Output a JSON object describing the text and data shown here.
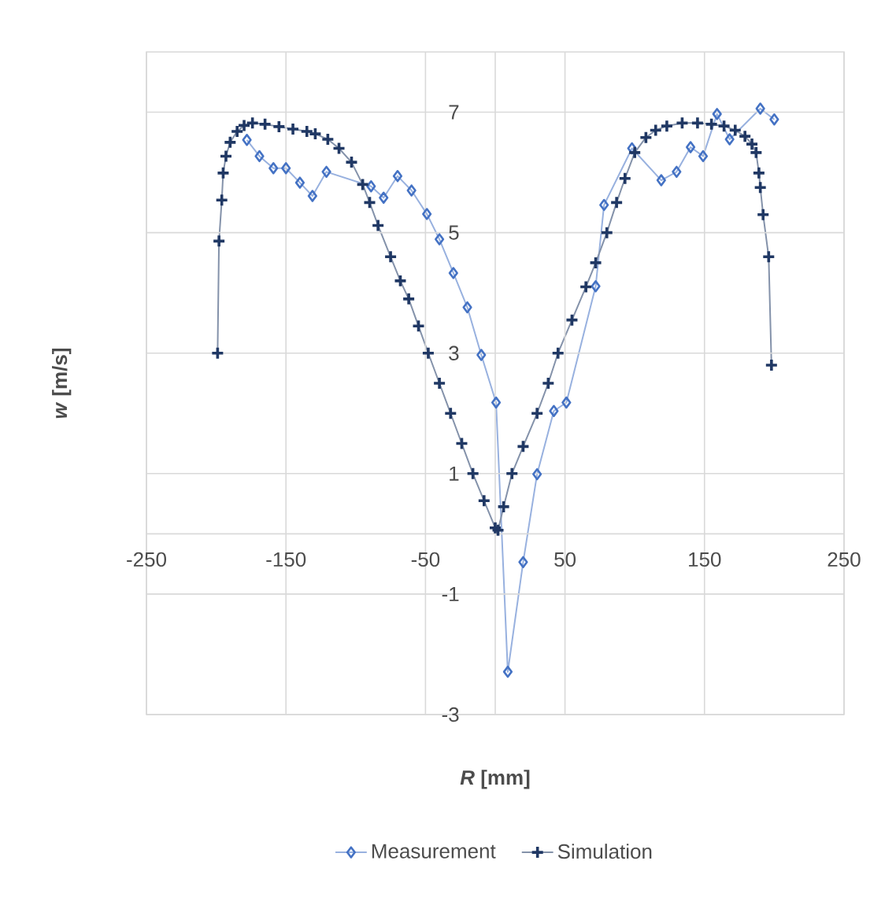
{
  "chart_data": {
    "type": "line",
    "xlabel": "*R* [mm]",
    "ylabel": "*w* [m/s]",
    "xlim": [
      -250,
      250
    ],
    "ylim": [
      -3,
      8
    ],
    "xticks": [
      -250,
      -150,
      -50,
      50,
      150,
      250
    ],
    "yticks": [
      -3,
      -1,
      1,
      3,
      5,
      7
    ],
    "grid": true,
    "legend": "bottom",
    "series": [
      {
        "name": "Measurement",
        "color": "#4472c4",
        "marker": "diamond",
        "x": [
          -178,
          -169,
          -159,
          -150,
          -140,
          -131,
          -121,
          -89,
          -80,
          -70,
          -60,
          -49,
          -40,
          -30,
          -20,
          -10,
          0.6,
          9,
          20,
          30,
          42,
          51,
          72,
          78,
          98,
          119,
          130,
          140,
          149,
          159,
          168,
          190,
          200
        ],
        "values": [
          6.54,
          6.27,
          6.07,
          6.07,
          5.83,
          5.61,
          6.01,
          5.77,
          5.58,
          5.94,
          5.7,
          5.31,
          4.89,
          4.33,
          3.76,
          2.97,
          2.18,
          -2.29,
          -0.47,
          0.99,
          2.04,
          2.18,
          4.11,
          5.46,
          6.4,
          5.87,
          6.01,
          6.42,
          6.27,
          6.97,
          6.55,
          7.06,
          6.88
        ]
      },
      {
        "name": "Simulation",
        "color": "#203864",
        "marker": "cross",
        "x": [
          -199,
          -198,
          -196,
          -195,
          -193,
          -190,
          -185,
          -180,
          -174,
          -165,
          -155,
          -145,
          -135,
          -129,
          -120,
          -112,
          -103,
          -95,
          -90,
          -84,
          -75,
          -68,
          -62,
          -55,
          -48,
          -40,
          -32,
          -24,
          -16,
          -8,
          0,
          2,
          6,
          12,
          20,
          30,
          38,
          45,
          55,
          65,
          72,
          80,
          87,
          93,
          100,
          108,
          115,
          123,
          134,
          145,
          155,
          164,
          172,
          179,
          184,
          187,
          189,
          190,
          192,
          196,
          198
        ],
        "values": [
          3.0,
          4.86,
          5.54,
          5.99,
          6.27,
          6.5,
          6.68,
          6.78,
          6.82,
          6.8,
          6.76,
          6.72,
          6.68,
          6.64,
          6.55,
          6.4,
          6.17,
          5.8,
          5.5,
          5.12,
          4.6,
          4.2,
          3.9,
          3.45,
          3.0,
          2.5,
          2.0,
          1.5,
          1.0,
          0.55,
          0.1,
          0.06,
          0.45,
          1.0,
          1.45,
          2.0,
          2.5,
          3.0,
          3.55,
          4.1,
          4.5,
          5.0,
          5.5,
          5.9,
          6.33,
          6.58,
          6.7,
          6.77,
          6.82,
          6.82,
          6.8,
          6.77,
          6.7,
          6.6,
          6.47,
          6.33,
          5.99,
          5.75,
          5.3,
          4.6,
          2.8
        ]
      }
    ]
  }
}
